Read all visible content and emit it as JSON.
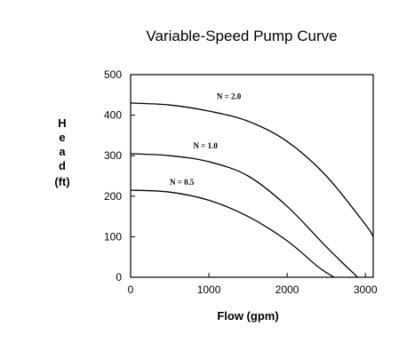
{
  "chart_data": {
    "type": "line",
    "title": "Variable-Speed Pump Curve",
    "xlabel": "Flow (gpm)",
    "ylabel": "Head (ft)",
    "xlim": [
      0,
      3000
    ],
    "ylim": [
      0,
      500
    ],
    "xticks": [
      "0",
      "1000",
      "2000",
      "3000"
    ],
    "yticks": [
      "0",
      "100",
      "200",
      "300",
      "400",
      "500"
    ],
    "grid": false,
    "series": [
      {
        "name": "N = 2.0",
        "x": [
          0,
          500,
          1000,
          1500,
          2000,
          2500,
          3000,
          3100
        ],
        "y": [
          430,
          425,
          410,
          385,
          335,
          250,
          130,
          100
        ]
      },
      {
        "name": "N = 1.0",
        "x": [
          0,
          500,
          1000,
          1500,
          2000,
          2500,
          2900
        ],
        "y": [
          305,
          300,
          285,
          250,
          175,
          75,
          0
        ]
      },
      {
        "name": "N = 0.5",
        "x": [
          0,
          500,
          1000,
          1500,
          2000,
          2400,
          2600
        ],
        "y": [
          215,
          210,
          190,
          150,
          90,
          25,
          0
        ]
      }
    ],
    "annotations": [
      {
        "text": "N = 2.0",
        "x": 1100,
        "y": 440
      },
      {
        "text": "N = 1.0",
        "x": 800,
        "y": 318
      },
      {
        "text": "N = 0.5",
        "x": 500,
        "y": 228
      }
    ]
  }
}
